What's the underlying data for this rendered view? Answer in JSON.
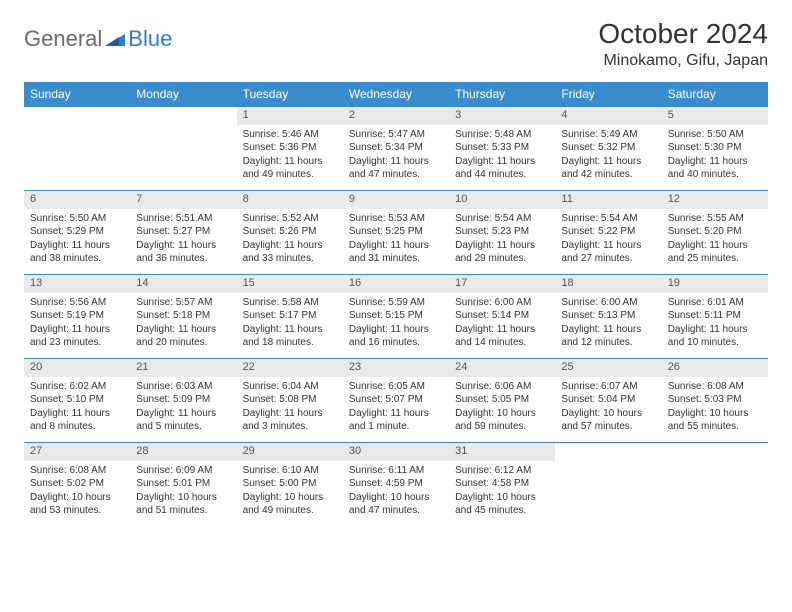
{
  "logo": {
    "part1": "General",
    "part2": "Blue"
  },
  "title": "October 2024",
  "location": "Minokamo, Gifu, Japan",
  "colors": {
    "header_bg": "#3b8ccc",
    "header_text": "#ffffff",
    "daynum_bg": "#e9e9e9",
    "rule": "#3b8ccc",
    "logo_gray": "#6b6b6b",
    "logo_blue": "#2f7fc8"
  },
  "dayHeaders": [
    "Sunday",
    "Monday",
    "Tuesday",
    "Wednesday",
    "Thursday",
    "Friday",
    "Saturday"
  ],
  "weeks": [
    [
      null,
      null,
      {
        "n": "1",
        "sr": "Sunrise: 5:46 AM",
        "ss": "Sunset: 5:36 PM",
        "dl": "Daylight: 11 hours and 49 minutes."
      },
      {
        "n": "2",
        "sr": "Sunrise: 5:47 AM",
        "ss": "Sunset: 5:34 PM",
        "dl": "Daylight: 11 hours and 47 minutes."
      },
      {
        "n": "3",
        "sr": "Sunrise: 5:48 AM",
        "ss": "Sunset: 5:33 PM",
        "dl": "Daylight: 11 hours and 44 minutes."
      },
      {
        "n": "4",
        "sr": "Sunrise: 5:49 AM",
        "ss": "Sunset: 5:32 PM",
        "dl": "Daylight: 11 hours and 42 minutes."
      },
      {
        "n": "5",
        "sr": "Sunrise: 5:50 AM",
        "ss": "Sunset: 5:30 PM",
        "dl": "Daylight: 11 hours and 40 minutes."
      }
    ],
    [
      {
        "n": "6",
        "sr": "Sunrise: 5:50 AM",
        "ss": "Sunset: 5:29 PM",
        "dl": "Daylight: 11 hours and 38 minutes."
      },
      {
        "n": "7",
        "sr": "Sunrise: 5:51 AM",
        "ss": "Sunset: 5:27 PM",
        "dl": "Daylight: 11 hours and 36 minutes."
      },
      {
        "n": "8",
        "sr": "Sunrise: 5:52 AM",
        "ss": "Sunset: 5:26 PM",
        "dl": "Daylight: 11 hours and 33 minutes."
      },
      {
        "n": "9",
        "sr": "Sunrise: 5:53 AM",
        "ss": "Sunset: 5:25 PM",
        "dl": "Daylight: 11 hours and 31 minutes."
      },
      {
        "n": "10",
        "sr": "Sunrise: 5:54 AM",
        "ss": "Sunset: 5:23 PM",
        "dl": "Daylight: 11 hours and 29 minutes."
      },
      {
        "n": "11",
        "sr": "Sunrise: 5:54 AM",
        "ss": "Sunset: 5:22 PM",
        "dl": "Daylight: 11 hours and 27 minutes."
      },
      {
        "n": "12",
        "sr": "Sunrise: 5:55 AM",
        "ss": "Sunset: 5:20 PM",
        "dl": "Daylight: 11 hours and 25 minutes."
      }
    ],
    [
      {
        "n": "13",
        "sr": "Sunrise: 5:56 AM",
        "ss": "Sunset: 5:19 PM",
        "dl": "Daylight: 11 hours and 23 minutes."
      },
      {
        "n": "14",
        "sr": "Sunrise: 5:57 AM",
        "ss": "Sunset: 5:18 PM",
        "dl": "Daylight: 11 hours and 20 minutes."
      },
      {
        "n": "15",
        "sr": "Sunrise: 5:58 AM",
        "ss": "Sunset: 5:17 PM",
        "dl": "Daylight: 11 hours and 18 minutes."
      },
      {
        "n": "16",
        "sr": "Sunrise: 5:59 AM",
        "ss": "Sunset: 5:15 PM",
        "dl": "Daylight: 11 hours and 16 minutes."
      },
      {
        "n": "17",
        "sr": "Sunrise: 6:00 AM",
        "ss": "Sunset: 5:14 PM",
        "dl": "Daylight: 11 hours and 14 minutes."
      },
      {
        "n": "18",
        "sr": "Sunrise: 6:00 AM",
        "ss": "Sunset: 5:13 PM",
        "dl": "Daylight: 11 hours and 12 minutes."
      },
      {
        "n": "19",
        "sr": "Sunrise: 6:01 AM",
        "ss": "Sunset: 5:11 PM",
        "dl": "Daylight: 11 hours and 10 minutes."
      }
    ],
    [
      {
        "n": "20",
        "sr": "Sunrise: 6:02 AM",
        "ss": "Sunset: 5:10 PM",
        "dl": "Daylight: 11 hours and 8 minutes."
      },
      {
        "n": "21",
        "sr": "Sunrise: 6:03 AM",
        "ss": "Sunset: 5:09 PM",
        "dl": "Daylight: 11 hours and 5 minutes."
      },
      {
        "n": "22",
        "sr": "Sunrise: 6:04 AM",
        "ss": "Sunset: 5:08 PM",
        "dl": "Daylight: 11 hours and 3 minutes."
      },
      {
        "n": "23",
        "sr": "Sunrise: 6:05 AM",
        "ss": "Sunset: 5:07 PM",
        "dl": "Daylight: 11 hours and 1 minute."
      },
      {
        "n": "24",
        "sr": "Sunrise: 6:06 AM",
        "ss": "Sunset: 5:05 PM",
        "dl": "Daylight: 10 hours and 59 minutes."
      },
      {
        "n": "25",
        "sr": "Sunrise: 6:07 AM",
        "ss": "Sunset: 5:04 PM",
        "dl": "Daylight: 10 hours and 57 minutes."
      },
      {
        "n": "26",
        "sr": "Sunrise: 6:08 AM",
        "ss": "Sunset: 5:03 PM",
        "dl": "Daylight: 10 hours and 55 minutes."
      }
    ],
    [
      {
        "n": "27",
        "sr": "Sunrise: 6:08 AM",
        "ss": "Sunset: 5:02 PM",
        "dl": "Daylight: 10 hours and 53 minutes."
      },
      {
        "n": "28",
        "sr": "Sunrise: 6:09 AM",
        "ss": "Sunset: 5:01 PM",
        "dl": "Daylight: 10 hours and 51 minutes."
      },
      {
        "n": "29",
        "sr": "Sunrise: 6:10 AM",
        "ss": "Sunset: 5:00 PM",
        "dl": "Daylight: 10 hours and 49 minutes."
      },
      {
        "n": "30",
        "sr": "Sunrise: 6:11 AM",
        "ss": "Sunset: 4:59 PM",
        "dl": "Daylight: 10 hours and 47 minutes."
      },
      {
        "n": "31",
        "sr": "Sunrise: 6:12 AM",
        "ss": "Sunset: 4:58 PM",
        "dl": "Daylight: 10 hours and 45 minutes."
      },
      null,
      null
    ]
  ]
}
